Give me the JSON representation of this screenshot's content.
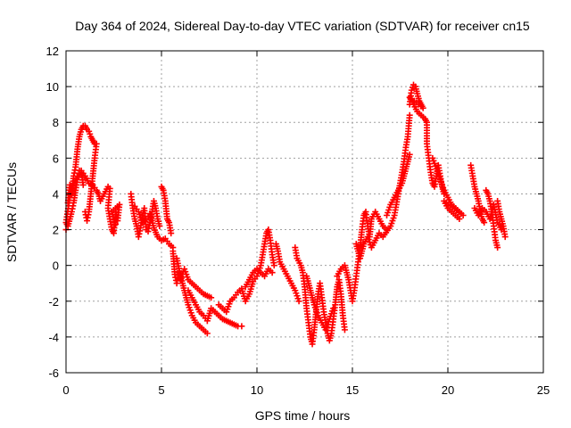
{
  "chart_data": {
    "type": "scatter",
    "title": "Day 364 of 2024, Sidereal Day-to-day VTEC variation (SDTVAR) for receiver cn15",
    "xlabel": "GPS time / hours",
    "ylabel": "SDTVAR / TECUs",
    "xlim": [
      0,
      25
    ],
    "ylim": [
      -6,
      12
    ],
    "xticks": [
      0,
      5,
      10,
      15,
      20,
      25
    ],
    "yticks": [
      -6,
      -4,
      -2,
      0,
      2,
      4,
      6,
      8,
      10,
      12
    ],
    "grid": true,
    "marker": "+",
    "color": "#ff0000",
    "series": [
      {
        "name": "SDTVAR",
        "points": [
          [
            0.0,
            2.0
          ],
          [
            0.1,
            3.5
          ],
          [
            0.2,
            4.5
          ],
          [
            0.3,
            4.0
          ],
          [
            0.4,
            5.0
          ],
          [
            0.5,
            5.5
          ],
          [
            0.6,
            6.5
          ],
          [
            0.7,
            7.2
          ],
          [
            0.8,
            7.6
          ],
          [
            0.9,
            7.8
          ],
          [
            1.0,
            7.8
          ],
          [
            1.1,
            7.6
          ],
          [
            1.2,
            7.5
          ],
          [
            1.3,
            7.2
          ],
          [
            1.4,
            7.0
          ],
          [
            1.5,
            6.8
          ],
          [
            1.6,
            6.8
          ],
          [
            1.5,
            6.0
          ],
          [
            1.4,
            5.0
          ],
          [
            1.3,
            4.0
          ],
          [
            1.2,
            3.0
          ],
          [
            1.1,
            2.5
          ],
          [
            1.0,
            3.0
          ],
          [
            0.9,
            4.5
          ],
          [
            0.8,
            5.2
          ],
          [
            0.7,
            5.3
          ],
          [
            0.6,
            4.8
          ],
          [
            0.5,
            4.2
          ],
          [
            0.4,
            3.5
          ],
          [
            0.3,
            3.0
          ],
          [
            0.2,
            2.6
          ],
          [
            0.1,
            2.2
          ],
          [
            0.0,
            2.4
          ],
          [
            0.2,
            3.8
          ],
          [
            0.4,
            4.6
          ],
          [
            0.6,
            5.0
          ],
          [
            0.8,
            5.3
          ],
          [
            1.0,
            5.0
          ],
          [
            1.2,
            4.6
          ],
          [
            1.4,
            4.5
          ],
          [
            1.6,
            4.2
          ],
          [
            1.7,
            4.0
          ],
          [
            1.8,
            3.6
          ],
          [
            2.2,
            4.4
          ],
          [
            2.3,
            4.3
          ],
          [
            2.2,
            3.2
          ],
          [
            2.3,
            2.6
          ],
          [
            2.4,
            2.0
          ],
          [
            2.5,
            1.8
          ],
          [
            2.6,
            3.0
          ],
          [
            2.7,
            2.5
          ],
          [
            2.8,
            3.4
          ],
          [
            2.4,
            3.0
          ],
          [
            2.6,
            2.3
          ],
          [
            3.4,
            4.0
          ],
          [
            3.5,
            3.2
          ],
          [
            3.6,
            2.6
          ],
          [
            3.7,
            2.2
          ],
          [
            3.8,
            1.6
          ],
          [
            3.9,
            2.1
          ],
          [
            4.0,
            2.8
          ],
          [
            4.1,
            3.2
          ],
          [
            4.2,
            2.0
          ],
          [
            4.3,
            1.9
          ],
          [
            4.4,
            2.4
          ],
          [
            4.5,
            3.0
          ],
          [
            4.6,
            3.6
          ],
          [
            4.7,
            3.2
          ],
          [
            4.8,
            2.6
          ],
          [
            4.9,
            2.2
          ],
          [
            5.0,
            4.4
          ],
          [
            5.1,
            4.2
          ],
          [
            5.2,
            3.6
          ],
          [
            5.3,
            2.6
          ],
          [
            5.4,
            2.4
          ],
          [
            5.5,
            1.8
          ],
          [
            3.6,
            3.3
          ],
          [
            3.8,
            3.0
          ],
          [
            4.0,
            2.4
          ],
          [
            4.2,
            2.6
          ],
          [
            4.4,
            2.9
          ],
          [
            4.6,
            2.1
          ],
          [
            4.8,
            1.6
          ],
          [
            5.0,
            1.4
          ],
          [
            5.2,
            1.5
          ],
          [
            5.4,
            1.2
          ],
          [
            5.6,
            1.0
          ],
          [
            5.6,
            0.8
          ],
          [
            5.7,
            -0.5
          ],
          [
            5.8,
            -1.0
          ],
          [
            5.9,
            -0.4
          ],
          [
            6.0,
            -0.8
          ],
          [
            6.2,
            -0.2
          ],
          [
            6.4,
            -0.8
          ],
          [
            6.6,
            -1.0
          ],
          [
            6.8,
            -1.2
          ],
          [
            7.0,
            -1.4
          ],
          [
            7.2,
            -1.6
          ],
          [
            7.4,
            -1.7
          ],
          [
            7.6,
            -1.8
          ],
          [
            5.8,
            0.4
          ],
          [
            6.0,
            -0.6
          ],
          [
            6.2,
            -1.4
          ],
          [
            6.4,
            -2.2
          ],
          [
            6.6,
            -2.8
          ],
          [
            6.8,
            -3.2
          ],
          [
            7.0,
            -3.4
          ],
          [
            7.2,
            -3.6
          ],
          [
            7.4,
            -3.8
          ],
          [
            6.4,
            -1.4
          ],
          [
            6.6,
            -1.8
          ],
          [
            6.8,
            -2.2
          ],
          [
            7.0,
            -2.6
          ],
          [
            7.2,
            -2.8
          ],
          [
            7.4,
            -3.1
          ],
          [
            7.6,
            -2.4
          ],
          [
            7.8,
            -2.6
          ],
          [
            8.0,
            -2.8
          ],
          [
            8.2,
            -3.0
          ],
          [
            8.4,
            -3.1
          ],
          [
            8.6,
            -3.2
          ],
          [
            8.8,
            -3.3
          ],
          [
            9.0,
            -3.4
          ],
          [
            9.2,
            -3.4
          ],
          [
            8.0,
            -2.2
          ],
          [
            8.2,
            -2.4
          ],
          [
            8.4,
            -2.6
          ],
          [
            8.6,
            -2.0
          ],
          [
            8.8,
            -1.8
          ],
          [
            9.0,
            -1.5
          ],
          [
            9.2,
            -1.3
          ],
          [
            9.4,
            -2.0
          ],
          [
            9.6,
            -1.6
          ],
          [
            9.8,
            -0.9
          ],
          [
            10.0,
            -0.6
          ],
          [
            10.2,
            0.0
          ],
          [
            10.3,
            0.6
          ],
          [
            10.4,
            1.2
          ],
          [
            10.5,
            1.8
          ],
          [
            10.6,
            2.0
          ],
          [
            10.7,
            1.4
          ],
          [
            10.8,
            0.6
          ],
          [
            10.9,
            0.0
          ],
          [
            9.4,
            -1.2
          ],
          [
            9.6,
            -0.8
          ],
          [
            9.8,
            -0.4
          ],
          [
            10.0,
            -0.2
          ],
          [
            10.2,
            -0.4
          ],
          [
            10.4,
            -0.6
          ],
          [
            10.6,
            -0.2
          ],
          [
            10.8,
            -0.4
          ],
          [
            11.0,
            1.2
          ],
          [
            11.1,
            0.8
          ],
          [
            11.2,
            0.2
          ],
          [
            11.4,
            -0.2
          ],
          [
            11.6,
            -0.6
          ],
          [
            11.8,
            -1.0
          ],
          [
            12.0,
            -1.4
          ],
          [
            12.2,
            -2.0
          ],
          [
            12.0,
            1.0
          ],
          [
            12.1,
            0.4
          ],
          [
            12.3,
            0.0
          ],
          [
            12.4,
            -0.4
          ],
          [
            12.5,
            -1.2
          ],
          [
            12.6,
            -2.4
          ],
          [
            12.7,
            -3.2
          ],
          [
            12.8,
            -4.0
          ],
          [
            12.9,
            -4.4
          ],
          [
            13.0,
            -3.6
          ],
          [
            13.1,
            -2.6
          ],
          [
            13.2,
            -1.6
          ],
          [
            13.3,
            -1.0
          ],
          [
            13.4,
            -1.8
          ],
          [
            13.5,
            -2.6
          ],
          [
            13.6,
            -3.2
          ],
          [
            13.7,
            -3.8
          ],
          [
            13.8,
            -4.2
          ],
          [
            13.9,
            -3.8
          ],
          [
            14.0,
            -3.0
          ],
          [
            14.1,
            -2.2
          ],
          [
            14.2,
            -1.2
          ],
          [
            14.3,
            -0.8
          ],
          [
            14.4,
            -1.6
          ],
          [
            14.5,
            -2.8
          ],
          [
            14.6,
            -3.6
          ],
          [
            12.6,
            -0.6
          ],
          [
            12.8,
            -1.4
          ],
          [
            13.0,
            -2.2
          ],
          [
            13.2,
            -2.8
          ],
          [
            13.4,
            -3.2
          ],
          [
            13.6,
            -3.6
          ],
          [
            13.8,
            -3.0
          ],
          [
            14.0,
            -2.4
          ],
          [
            14.2,
            -0.6
          ],
          [
            14.4,
            -0.2
          ],
          [
            14.6,
            0.0
          ],
          [
            14.8,
            -0.8
          ],
          [
            15.0,
            -2.0
          ],
          [
            15.1,
            -1.4
          ],
          [
            15.2,
            -0.6
          ],
          [
            15.3,
            0.2
          ],
          [
            15.4,
            1.0
          ],
          [
            15.5,
            2.0
          ],
          [
            15.6,
            2.8
          ],
          [
            15.7,
            3.0
          ],
          [
            15.8,
            2.2
          ],
          [
            15.9,
            1.6
          ],
          [
            16.0,
            2.6
          ],
          [
            16.2,
            3.0
          ],
          [
            16.4,
            2.6
          ],
          [
            16.6,
            2.2
          ],
          [
            16.8,
            2.0
          ],
          [
            15.2,
            1.2
          ],
          [
            15.4,
            0.4
          ],
          [
            15.6,
            1.2
          ],
          [
            15.8,
            1.6
          ],
          [
            16.0,
            1.0
          ],
          [
            16.2,
            1.4
          ],
          [
            16.4,
            1.8
          ],
          [
            16.6,
            1.6
          ],
          [
            17.0,
            2.2
          ],
          [
            17.2,
            2.8
          ],
          [
            17.3,
            3.4
          ],
          [
            17.4,
            4.0
          ],
          [
            17.5,
            4.6
          ],
          [
            17.6,
            5.2
          ],
          [
            17.7,
            5.8
          ],
          [
            17.8,
            6.6
          ],
          [
            17.9,
            7.2
          ],
          [
            18.0,
            8.4
          ],
          [
            16.8,
            2.8
          ],
          [
            17.0,
            3.4
          ],
          [
            17.2,
            3.8
          ],
          [
            17.4,
            4.2
          ],
          [
            17.6,
            4.6
          ],
          [
            17.8,
            5.4
          ],
          [
            18.0,
            6.2
          ],
          [
            18.0,
            9.0
          ],
          [
            18.1,
            9.8
          ],
          [
            18.2,
            10.1
          ],
          [
            18.3,
            10.0
          ],
          [
            18.4,
            9.6
          ],
          [
            18.5,
            9.2
          ],
          [
            18.6,
            9.0
          ],
          [
            18.7,
            8.8
          ],
          [
            18.0,
            9.4
          ],
          [
            18.2,
            9.0
          ],
          [
            18.4,
            8.6
          ],
          [
            18.6,
            8.4
          ],
          [
            18.8,
            8.2
          ],
          [
            18.9,
            8.0
          ],
          [
            18.9,
            6.8
          ],
          [
            19.0,
            6.0
          ],
          [
            19.1,
            5.2
          ],
          [
            19.2,
            4.6
          ],
          [
            19.3,
            4.4
          ],
          [
            19.4,
            5.0
          ],
          [
            19.5,
            5.6
          ],
          [
            19.6,
            5.0
          ],
          [
            19.7,
            4.4
          ],
          [
            19.8,
            4.0
          ],
          [
            19.2,
            6.0
          ],
          [
            19.4,
            5.4
          ],
          [
            19.6,
            4.8
          ],
          [
            19.8,
            4.2
          ],
          [
            20.0,
            3.8
          ],
          [
            20.2,
            3.4
          ],
          [
            20.4,
            3.2
          ],
          [
            20.6,
            3.0
          ],
          [
            20.8,
            2.8
          ],
          [
            19.8,
            3.6
          ],
          [
            20.0,
            3.2
          ],
          [
            20.2,
            3.0
          ],
          [
            20.4,
            2.8
          ],
          [
            20.6,
            2.6
          ],
          [
            21.2,
            5.6
          ],
          [
            21.3,
            5.0
          ],
          [
            21.4,
            4.4
          ],
          [
            21.5,
            4.0
          ],
          [
            21.6,
            3.6
          ],
          [
            21.7,
            3.0
          ],
          [
            21.8,
            2.6
          ],
          [
            21.9,
            2.4
          ],
          [
            22.0,
            4.2
          ],
          [
            22.1,
            4.0
          ],
          [
            22.2,
            3.6
          ],
          [
            22.3,
            3.0
          ],
          [
            22.4,
            2.2
          ],
          [
            22.5,
            1.4
          ],
          [
            22.6,
            1.0
          ],
          [
            22.6,
            3.6
          ],
          [
            22.7,
            3.0
          ],
          [
            22.8,
            2.6
          ],
          [
            22.9,
            2.2
          ],
          [
            23.0,
            1.6
          ],
          [
            21.4,
            3.2
          ],
          [
            21.6,
            2.8
          ],
          [
            21.8,
            3.2
          ],
          [
            22.0,
            3.0
          ],
          [
            22.2,
            2.6
          ],
          [
            22.4,
            3.4
          ],
          [
            22.6,
            2.4
          ],
          [
            22.8,
            2.0
          ]
        ]
      }
    ]
  }
}
